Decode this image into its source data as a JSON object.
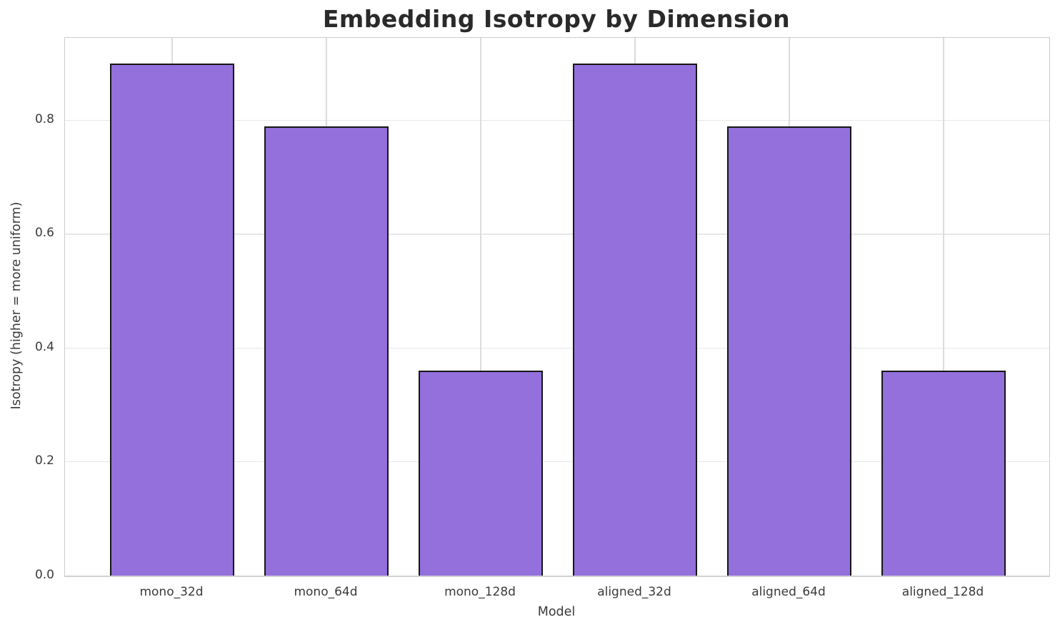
{
  "figure": {
    "background": "#ffffff"
  },
  "chart_data": {
    "type": "bar",
    "title": "Embedding Isotropy by Dimension",
    "xlabel": "Model",
    "ylabel": "Isotropy (higher = more uniform)",
    "categories": [
      "mono_32d",
      "mono_64d",
      "mono_128d",
      "aligned_32d",
      "aligned_64d",
      "aligned_128d"
    ],
    "values": [
      0.9,
      0.79,
      0.36,
      0.9,
      0.79,
      0.36
    ],
    "ylim": [
      0,
      0.945
    ],
    "yticks": [
      0.0,
      0.2,
      0.4,
      0.6,
      0.8
    ],
    "ytick_labels": [
      "0.0",
      "0.2",
      "0.4",
      "0.6",
      "0.8"
    ],
    "grid": true,
    "legend": "none",
    "bar_color": "#9370DB",
    "bar_edge_color": "#161616",
    "hgrid_color": "#e7e7e7",
    "vgrid_color": "#dcdcdc",
    "spine_color": "#cccccc",
    "tick_text_color": "#3a3a3a",
    "title_color": "#2a2a2a"
  }
}
